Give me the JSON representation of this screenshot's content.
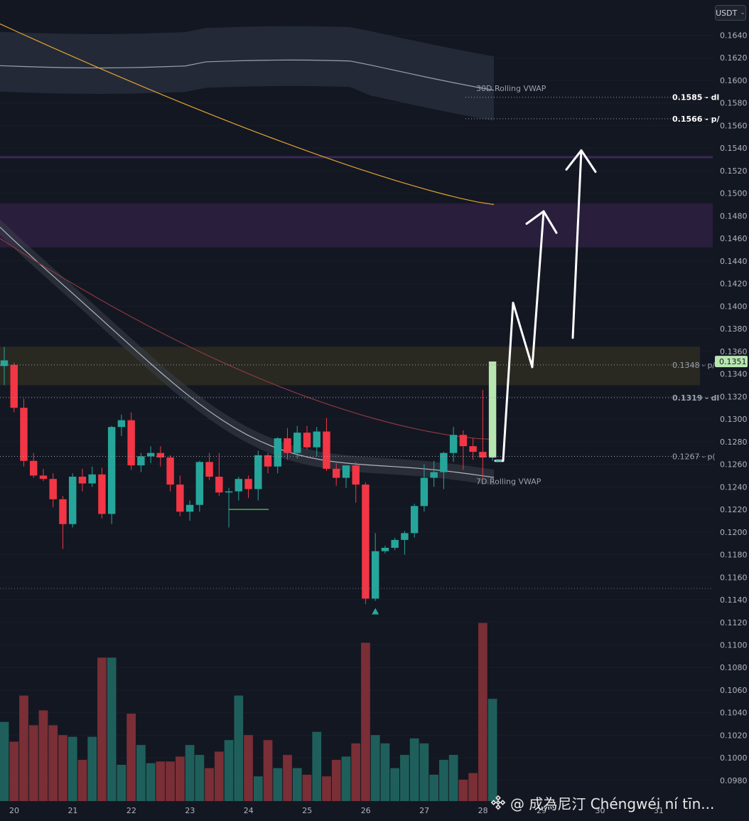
{
  "header": {
    "currency": "USDT"
  },
  "watermark": {
    "text": "@ 成為尼汀 Chéngwéi ní tīn..."
  },
  "colors": {
    "background": "#131722",
    "up": "#26a69a",
    "down": "#f23645",
    "up_volume": "#1f5f5b",
    "down_volume": "#7a2e35",
    "vwap_band": "#262b38",
    "ma_orange": "#e3a233",
    "resistance_zone": "#2a1f3d",
    "supply_zone": "#2a2a22",
    "arrow": "#ffffff"
  },
  "chart_data": {
    "type": "candlestick",
    "symbol_quote": "USDT",
    "x_ticks": [
      "20",
      "21",
      "22",
      "23",
      "24",
      "25",
      "26",
      "27",
      "28",
      "29",
      "30",
      "31"
    ],
    "ylim": [
      0.0968,
      0.1651
    ],
    "y_ticks": [
      "0.1640",
      "0.1620",
      "0.1600",
      "0.1580",
      "0.1560",
      "0.1540",
      "0.1520",
      "0.1500",
      "0.1480",
      "0.1460",
      "0.1440",
      "0.1420",
      "0.1400",
      "0.1380",
      "0.1360",
      "0.1340",
      "0.1320",
      "0.1300",
      "0.1280",
      "0.1260",
      "0.1240",
      "0.1220",
      "0.1200",
      "0.1180",
      "0.1160",
      "0.1140",
      "0.1120",
      "0.1100",
      "0.1080",
      "0.1060",
      "0.1040",
      "0.1020",
      "0.1000",
      "0.0980"
    ],
    "last_price": "0.1351",
    "price_lines": [
      {
        "label": "0.1585 - dl",
        "value": 0.1585
      },
      {
        "label": "0.1566 - p/",
        "value": 0.1566
      },
      {
        "label": "0.1348 - p/",
        "value": 0.1348
      },
      {
        "label": "0.1319 - dl",
        "value": 0.1319
      },
      {
        "label": "0.1267 - p(",
        "value": 0.1267
      }
    ],
    "indicator_labels": [
      {
        "label": "30D Rolling VWAP",
        "value": 0.1593
      },
      {
        "label": "7D Rolling VWAP",
        "value": 0.1245
      }
    ],
    "candles_x_start": "20",
    "candles_per_day": 6,
    "candles": [
      [
        0.1347,
        0.1364,
        0.133,
        0.1352
      ],
      [
        0.1348,
        0.135,
        0.1306,
        0.131
      ],
      [
        0.131,
        0.1318,
        0.1258,
        0.1263
      ],
      [
        0.1263,
        0.127,
        0.1248,
        0.125
      ],
      [
        0.125,
        0.1256,
        0.1245,
        0.1247
      ],
      [
        0.1247,
        0.1252,
        0.1222,
        0.1229
      ],
      [
        0.1229,
        0.1232,
        0.1185,
        0.1207
      ],
      [
        0.1207,
        0.1252,
        0.1204,
        0.1249
      ],
      [
        0.1249,
        0.1256,
        0.1236,
        0.1243
      ],
      [
        0.1243,
        0.1258,
        0.124,
        0.1251
      ],
      [
        0.1251,
        0.1257,
        0.1212,
        0.1216
      ],
      [
        0.1216,
        0.1294,
        0.1207,
        0.1293
      ],
      [
        0.1293,
        0.1304,
        0.1285,
        0.1299
      ],
      [
        0.1299,
        0.1306,
        0.1255,
        0.1259
      ],
      [
        0.1259,
        0.127,
        0.1253,
        0.1267
      ],
      [
        0.1267,
        0.1276,
        0.1261,
        0.127
      ],
      [
        0.127,
        0.1276,
        0.1258,
        0.1266
      ],
      [
        0.1266,
        0.1268,
        0.1236,
        0.1242
      ],
      [
        0.1242,
        0.125,
        0.1214,
        0.1218
      ],
      [
        0.1218,
        0.1228,
        0.121,
        0.1224
      ],
      [
        0.1224,
        0.1263,
        0.1218,
        0.1262
      ],
      [
        0.1262,
        0.127,
        0.1246,
        0.1249
      ],
      [
        0.1249,
        0.127,
        0.1232,
        0.1235
      ],
      [
        0.1235,
        0.1239,
        0.1204,
        0.1236
      ],
      [
        0.1236,
        0.1249,
        0.1228,
        0.1247
      ],
      [
        0.1247,
        0.125,
        0.123,
        0.1238
      ],
      [
        0.1238,
        0.1272,
        0.1228,
        0.1268
      ],
      [
        0.1268,
        0.127,
        0.1252,
        0.1258
      ],
      [
        0.1258,
        0.1284,
        0.1252,
        0.1283
      ],
      [
        0.1283,
        0.1292,
        0.1264,
        0.127
      ],
      [
        0.127,
        0.1294,
        0.1265,
        0.1288
      ],
      [
        0.1288,
        0.1294,
        0.1273,
        0.1275
      ],
      [
        0.1275,
        0.1293,
        0.1267,
        0.1289
      ],
      [
        0.1289,
        0.1301,
        0.1254,
        0.1256
      ],
      [
        0.1256,
        0.1261,
        0.1241,
        0.1248
      ],
      [
        0.1248,
        0.1253,
        0.1239,
        0.1259
      ],
      [
        0.1259,
        0.1262,
        0.1226,
        0.1242
      ],
      [
        0.1242,
        0.1244,
        0.1136,
        0.1141
      ],
      [
        0.1141,
        0.1199,
        0.1139,
        0.1183
      ],
      [
        0.1183,
        0.1188,
        0.1181,
        0.1186
      ],
      [
        0.1186,
        0.1195,
        0.1184,
        0.1193
      ],
      [
        0.1193,
        0.1201,
        0.118,
        0.1199
      ],
      [
        0.1199,
        0.1225,
        0.1195,
        0.1223
      ],
      [
        0.1223,
        0.126,
        0.1218,
        0.1248
      ],
      [
        0.1248,
        0.1263,
        0.124,
        0.1253
      ],
      [
        0.1253,
        0.1271,
        0.1238,
        0.127
      ],
      [
        0.127,
        0.1293,
        0.1262,
        0.1286
      ],
      [
        0.1286,
        0.129,
        0.1255,
        0.1276
      ],
      [
        0.1276,
        0.1283,
        0.1264,
        0.1271
      ],
      [
        0.1271,
        0.1326,
        0.1248,
        0.1266
      ],
      [
        0.1266,
        0.1351,
        0.1263,
        0.1351
      ]
    ],
    "volumes": [
      0.48,
      0.36,
      0.64,
      0.46,
      0.55,
      0.46,
      0.4,
      0.39,
      0.25,
      0.39,
      0.87,
      0.87,
      0.22,
      0.53,
      0.34,
      0.23,
      0.24,
      0.24,
      0.27,
      0.34,
      0.28,
      0.2,
      0.3,
      0.37,
      0.64,
      0.4,
      0.15,
      0.37,
      0.2,
      0.28,
      0.2,
      0.16,
      0.42,
      0.15,
      0.25,
      0.27,
      0.35,
      0.96,
      0.4,
      0.35,
      0.2,
      0.28,
      0.38,
      0.35,
      0.16,
      0.25,
      0.28,
      0.13,
      0.17,
      1.08,
      0.62
    ],
    "annotations": {
      "signal_arrow_candle_index": 38,
      "projection_arrows": "two upward arrows pointing to resistance zones",
      "zones": [
        {
          "type": "resistance",
          "from": 0.1452,
          "to": 0.1491
        },
        {
          "type": "supply",
          "from": 0.133,
          "to": 0.1364
        }
      ]
    }
  }
}
